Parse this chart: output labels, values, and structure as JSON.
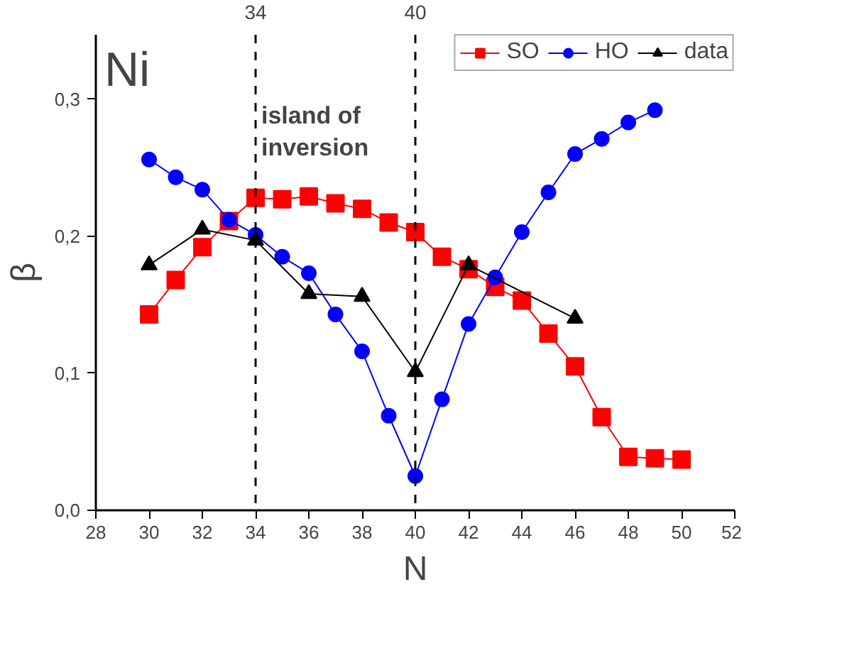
{
  "chart_data": {
    "type": "line",
    "title": "Ni",
    "xlabel": "N",
    "ylabel": "β",
    "xlim": [
      28,
      52
    ],
    "xticks": [
      28,
      30,
      32,
      34,
      36,
      38,
      40,
      42,
      44,
      46,
      48,
      50,
      52
    ],
    "ylim": [
      0,
      0.347
    ],
    "yticks": [
      {
        "value": 0,
        "label": "0,0"
      },
      {
        "value": 0.1,
        "label": "0,1"
      },
      {
        "value": 0.2,
        "label": "0,2"
      },
      {
        "value": 0.3,
        "label": "0,3"
      }
    ],
    "grid": false,
    "legend": "top right",
    "line_style": "solid",
    "series": [
      {
        "name": "SO",
        "color": "#ff0000",
        "marker": "square",
        "x": [
          30,
          31,
          32,
          33,
          34,
          35,
          36,
          37,
          38,
          39,
          40,
          41,
          42,
          43,
          44,
          45,
          46,
          47,
          48,
          49,
          50
        ],
        "values": [
          0.143,
          0.168,
          0.192,
          0.211,
          0.228,
          0.227,
          0.229,
          0.224,
          0.22,
          0.21,
          0.203,
          0.185,
          0.176,
          0.163,
          0.153,
          0.129,
          0.105,
          0.068,
          0.039,
          0.038,
          0.037
        ]
      },
      {
        "name": "HO",
        "color": "#0000ff",
        "marker": "circle",
        "x": [
          30,
          31,
          32,
          33,
          34,
          35,
          36,
          37,
          38,
          39,
          40,
          41,
          42,
          43,
          44,
          45,
          46,
          47,
          48,
          49
        ],
        "values": [
          0.256,
          0.243,
          0.234,
          0.212,
          0.201,
          0.185,
          0.173,
          0.143,
          0.116,
          0.069,
          0.025,
          0.081,
          0.136,
          0.17,
          0.203,
          0.232,
          0.26,
          0.271,
          0.283,
          0.292
        ]
      },
      {
        "name": "data",
        "color": "#000000",
        "marker": "triangle",
        "x": [
          30,
          32,
          34,
          36,
          38,
          40,
          42,
          46
        ],
        "values": [
          0.179,
          0.205,
          0.197,
          0.158,
          0.156,
          0.101,
          0.179,
          0.14
        ]
      }
    ],
    "ref_lines": [
      {
        "axis": "x",
        "value": 34,
        "label": "34",
        "color": "#000000",
        "line_style": "dashed"
      },
      {
        "axis": "x",
        "value": 40,
        "label": "40",
        "color": "#000000",
        "line_style": "dashed"
      }
    ],
    "annotations": [
      {
        "text": "island of\ninversion",
        "x": 34,
        "y": 0.298
      }
    ]
  }
}
